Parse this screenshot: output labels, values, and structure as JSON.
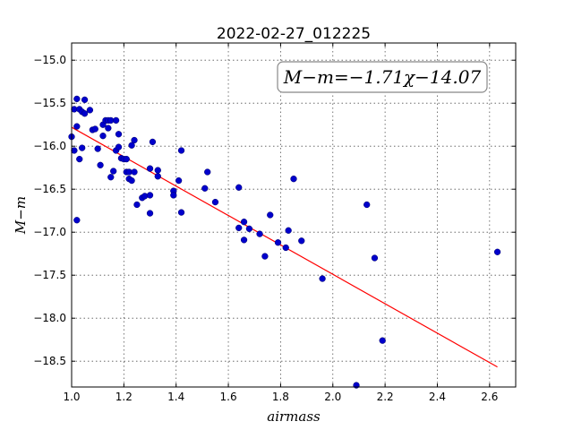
{
  "chart_data": {
    "type": "scatter",
    "title": "2022-02-27_012225",
    "xlabel": "airmass",
    "ylabel": "M−m",
    "xlim": [
      1.0,
      2.7
    ],
    "ylim": [
      -18.8,
      -14.8
    ],
    "y_inverted": true,
    "xticks": [
      1.0,
      1.2,
      1.4,
      1.6,
      1.8,
      2.0,
      2.2,
      2.4,
      2.6
    ],
    "xtick_labels": [
      "1.0",
      "1.2",
      "1.4",
      "1.6",
      "1.8",
      "2.0",
      "2.2",
      "2.4",
      "2.6"
    ],
    "yticks": [
      -15.0,
      -15.5,
      -16.0,
      -16.5,
      -17.0,
      -17.5,
      -18.0,
      -18.5
    ],
    "ytick_labels": [
      "−15.0",
      "−15.5",
      "−16.0",
      "−16.5",
      "−17.0",
      "−17.5",
      "−18.0",
      "−18.5"
    ],
    "grid": true,
    "annotation": "M−m=−1.71χ−14.07",
    "point_color": "#0000cc",
    "fit_color": "#ff0000",
    "fit_line": {
      "slope": -1.71,
      "intercept": -14.07,
      "x_range": [
        1.0,
        2.63
      ]
    },
    "points": [
      [
        1.0,
        -15.89
      ],
      [
        1.01,
        -16.05
      ],
      [
        1.01,
        -15.57
      ],
      [
        1.02,
        -15.45
      ],
      [
        1.02,
        -15.77
      ],
      [
        1.02,
        -16.86
      ],
      [
        1.03,
        -15.57
      ],
      [
        1.03,
        -16.15
      ],
      [
        1.04,
        -15.6
      ],
      [
        1.04,
        -16.02
      ],
      [
        1.05,
        -15.46
      ],
      [
        1.05,
        -15.62
      ],
      [
        1.07,
        -15.58
      ],
      [
        1.08,
        -15.81
      ],
      [
        1.09,
        -15.8
      ],
      [
        1.1,
        -16.03
      ],
      [
        1.11,
        -16.22
      ],
      [
        1.12,
        -15.88
      ],
      [
        1.12,
        -15.75
      ],
      [
        1.13,
        -15.7
      ],
      [
        1.14,
        -15.79
      ],
      [
        1.14,
        -15.7
      ],
      [
        1.15,
        -15.7
      ],
      [
        1.15,
        -16.36
      ],
      [
        1.16,
        -16.29
      ],
      [
        1.17,
        -15.7
      ],
      [
        1.17,
        -16.05
      ],
      [
        1.18,
        -15.86
      ],
      [
        1.18,
        -16.01
      ],
      [
        1.19,
        -16.14
      ],
      [
        1.2,
        -16.15
      ],
      [
        1.21,
        -16.15
      ],
      [
        1.21,
        -16.3
      ],
      [
        1.22,
        -16.38
      ],
      [
        1.22,
        -16.3
      ],
      [
        1.23,
        -16.4
      ],
      [
        1.23,
        -15.99
      ],
      [
        1.24,
        -15.93
      ],
      [
        1.24,
        -16.3
      ],
      [
        1.25,
        -16.68
      ],
      [
        1.27,
        -16.6
      ],
      [
        1.28,
        -16.58
      ],
      [
        1.3,
        -16.26
      ],
      [
        1.3,
        -16.78
      ],
      [
        1.3,
        -16.57
      ],
      [
        1.31,
        -15.95
      ],
      [
        1.33,
        -16.28
      ],
      [
        1.33,
        -16.35
      ],
      [
        1.39,
        -16.52
      ],
      [
        1.39,
        -16.57
      ],
      [
        1.41,
        -16.4
      ],
      [
        1.42,
        -16.05
      ],
      [
        1.42,
        -16.77
      ],
      [
        1.51,
        -16.49
      ],
      [
        1.52,
        -16.3
      ],
      [
        1.55,
        -16.65
      ],
      [
        1.64,
        -16.48
      ],
      [
        1.64,
        -16.95
      ],
      [
        1.66,
        -16.88
      ],
      [
        1.66,
        -17.09
      ],
      [
        1.68,
        -16.96
      ],
      [
        1.72,
        -17.02
      ],
      [
        1.74,
        -17.28
      ],
      [
        1.76,
        -16.8
      ],
      [
        1.79,
        -17.12
      ],
      [
        1.82,
        -17.18
      ],
      [
        1.83,
        -16.98
      ],
      [
        1.85,
        -16.38
      ],
      [
        1.88,
        -17.1
      ],
      [
        1.96,
        -17.54
      ],
      [
        2.09,
        -18.78
      ],
      [
        2.13,
        -16.68
      ],
      [
        2.16,
        -17.3
      ],
      [
        2.19,
        -18.26
      ],
      [
        2.63,
        -17.23
      ]
    ]
  }
}
